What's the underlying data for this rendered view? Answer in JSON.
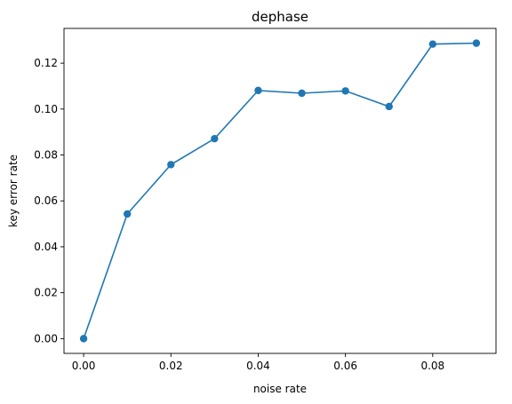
{
  "chart_data": {
    "type": "line",
    "title": "dephase",
    "xlabel": "noise rate",
    "ylabel": "key error rate",
    "x": [
      0.0,
      0.01,
      0.02,
      0.03,
      0.04,
      0.05,
      0.06,
      0.07,
      0.08,
      0.09
    ],
    "series": [
      {
        "values": [
          0.0,
          0.0543,
          0.0758,
          0.0871,
          0.1081,
          0.1069,
          0.1079,
          0.1011,
          0.1283,
          0.1287
        ],
        "color": "#1f77b4",
        "marker": "circle"
      }
    ],
    "xlim": [
      -0.0045,
      0.0945
    ],
    "ylim": [
      -0.00643,
      0.13513
    ],
    "xticks": [
      0.0,
      0.02,
      0.04,
      0.06,
      0.08
    ],
    "xtick_labels": [
      "0.00",
      "0.02",
      "0.04",
      "0.06",
      "0.08"
    ],
    "yticks": [
      0.0,
      0.02,
      0.04,
      0.06,
      0.08,
      0.1,
      0.12
    ],
    "ytick_labels": [
      "0.00",
      "0.02",
      "0.04",
      "0.06",
      "0.08",
      "0.10",
      "0.12"
    ],
    "grid": false,
    "legend": false
  }
}
